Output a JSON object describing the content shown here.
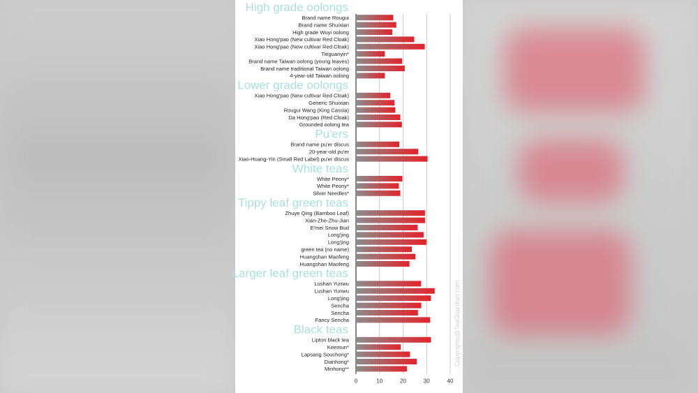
{
  "chart_data": {
    "type": "bar",
    "orientation": "horizontal",
    "xlim": [
      0,
      40
    ],
    "x_ticks": [
      "0",
      "10",
      "20",
      "30",
      "40"
    ],
    "grid": true,
    "colors": {
      "bar_start": "#8c8c8c",
      "bar_end": "#e3232b",
      "group_title": "#a9dfe0"
    },
    "groups": [
      {
        "title": "High grade oolongs",
        "categories": [
          "Brand name Rougui",
          "Brand name Shuixian",
          "High grade Wuyi oolong",
          "Xiao Hong'pao (New cultivar Red Cloak)",
          "Xiao Hong'pao (New cultivar Red Cloak)",
          "Tieguanyin*",
          "Brand name Taiwan oolong (young leaves)",
          "Brand name traditional Taiwan oolong",
          "4-year-old Taiwan oolong"
        ],
        "values": [
          15.8,
          17.1,
          15.4,
          24.7,
          29.2,
          12.2,
          19.6,
          20.7,
          12.2
        ]
      },
      {
        "title": "Lower grade oolongs",
        "categories": [
          "Xiao Hong'pao (New cultivar Red Cloak)",
          "Generic Shuixian",
          "Rougui Wang (King Cassia)",
          "Da Hong'pao (Red Cloak)",
          "Grounded oolong tea"
        ],
        "values": [
          14.5,
          16.3,
          16.7,
          18.8,
          19.5
        ]
      },
      {
        "title": "Pu'ers",
        "categories": [
          "Brand name pu'er discus",
          "20-year-old pu'er",
          "Xiao-Huang-Yin (Small Red Label) pu'er discus"
        ],
        "values": [
          18.4,
          26.4,
          30.4
        ]
      },
      {
        "title": "White teas",
        "categories": [
          "White Peony*",
          "White Peony*",
          "Silver Needles*"
        ],
        "values": [
          19.7,
          18.2,
          18.8
        ]
      },
      {
        "title": "Tippy leaf green teas",
        "categories": [
          "Zhuye Qing (Bamboo Leaf)",
          "Xian-Zhe-Zhu-Jian",
          "E'mei Snow Bud",
          "Long'jing",
          "Long'jing",
          "green tea (no name)",
          "Huangshan Maofeng",
          "Huangshan Maofeng"
        ],
        "values": [
          29.3,
          29.3,
          26.2,
          28.7,
          29.9,
          23.7,
          25.2,
          22.7
        ]
      },
      {
        "title": "Larger leaf green teas",
        "categories": [
          "Lushan Yunwu",
          "Lushan Yunwu",
          "Long'jing",
          "Sencha",
          "Sencha",
          "Fancy Sencha"
        ],
        "values": [
          27.6,
          33.4,
          31.8,
          27.7,
          26.3,
          31.5
        ]
      },
      {
        "title": "Black teas",
        "categories": [
          "Lipton black tea",
          "Keemun*",
          "Lapsang Souchong*",
          "Dianhong*",
          "Minhong**"
        ],
        "values": [
          31.8,
          19.0,
          22.9,
          25.8,
          21.6
        ]
      }
    ],
    "copyright": "Copyrights@TeaGuardian.com"
  }
}
